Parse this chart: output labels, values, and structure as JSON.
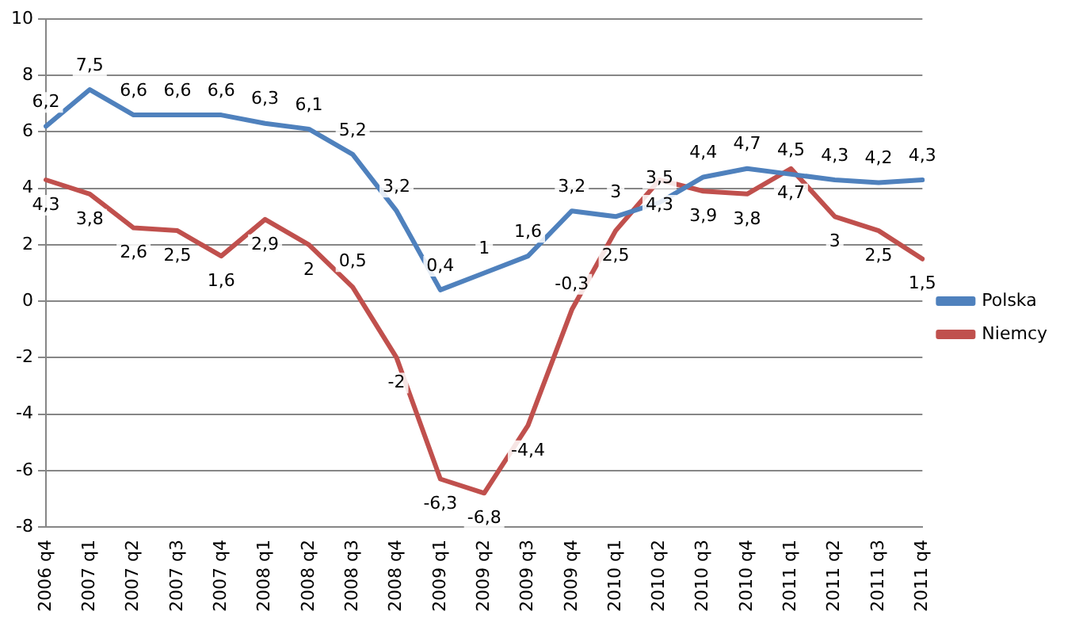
{
  "chart_data": {
    "type": "line",
    "categories": [
      "2006 q4",
      "2007 q1",
      "2007 q2",
      "2007 q3",
      "2007 q4",
      "2008 q1",
      "2008 q2",
      "2008 q3",
      "2008 q4",
      "2009 q1",
      "2009 q2",
      "2009 q3",
      "2009 q4",
      "2010 q1",
      "2010 q2",
      "2010 q3",
      "2010 q4",
      "2011 q1",
      "2011 q2",
      "2011 q3",
      "2011 q4"
    ],
    "series": [
      {
        "name": "Polska",
        "color": "#4f81bd",
        "values": [
          6.2,
          7.5,
          6.6,
          6.6,
          6.6,
          6.3,
          6.1,
          5.2,
          3.2,
          0.4,
          1,
          1.6,
          3.2,
          3,
          3.5,
          4.4,
          4.7,
          4.5,
          4.3,
          4.2,
          4.3
        ],
        "value_labels": [
          "6,2",
          "7,5",
          "6,6",
          "6,6",
          "6,6",
          "6,3",
          "6,1",
          "5,2",
          "3,2",
          "0,4",
          "1",
          "1,6",
          "3,2",
          "3",
          "3,5",
          "4,4",
          "4,7",
          "4,5",
          "4,3",
          "4,2",
          "4,3"
        ]
      },
      {
        "name": "Niemcy",
        "color": "#c0504d",
        "values": [
          4.3,
          3.8,
          2.6,
          2.5,
          1.6,
          2.9,
          2,
          0.5,
          -2,
          -6.3,
          -6.8,
          -4.4,
          -0.3,
          2.5,
          4.3,
          3.9,
          3.8,
          4.7,
          3,
          2.5,
          1.5
        ],
        "value_labels": [
          "4,3",
          "3,8",
          "2,6",
          "2,5",
          "1,6",
          "2,9",
          "2",
          "0,5",
          "-2",
          "-6,3",
          "-6,8",
          "-4,4",
          "-0,3",
          "2,5",
          "4,3",
          "3,9",
          "3,8",
          "4,7",
          "3",
          "2,5",
          "1,5"
        ]
      }
    ],
    "ylim": [
      -8,
      10
    ],
    "yticks": [
      -8,
      -6,
      -4,
      -2,
      0,
      2,
      4,
      6,
      8,
      10
    ],
    "grid": "y",
    "legend": "right",
    "marker": "none",
    "line_style": "solid"
  }
}
